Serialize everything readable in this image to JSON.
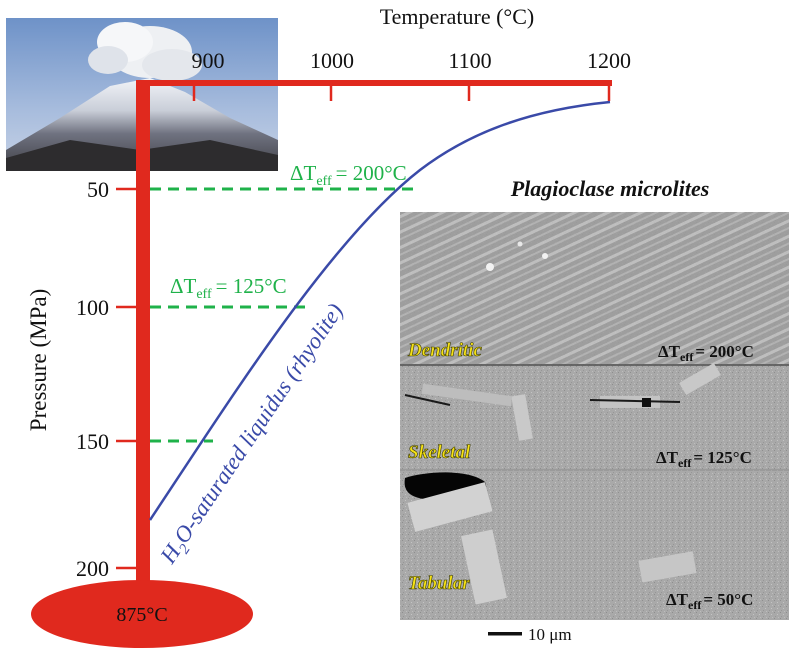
{
  "colors": {
    "axis_red": "#e0291e",
    "liquidus_blue": "#3a4aa8",
    "effective_green": "#1fb24a",
    "label_yellow": "#f6e216"
  },
  "top_axis": {
    "title": "Temperature (°C)",
    "ticks": [
      {
        "label": "900",
        "value": 900
      },
      {
        "label": "1000",
        "value": 1000
      },
      {
        "label": "1100",
        "value": 1100
      },
      {
        "label": "1200",
        "value": 1200
      }
    ]
  },
  "left_axis": {
    "title": "Pressure (MPa)",
    "ticks": [
      {
        "label": "50",
        "value": 50
      },
      {
        "label": "100",
        "value": 100
      },
      {
        "label": "150",
        "value": 150
      },
      {
        "label": "200",
        "value": 200
      }
    ]
  },
  "reservoir": {
    "label": "875°C"
  },
  "liquidus": {
    "label_pre": "H",
    "label_sub": "2",
    "label_post": "O-saturated liquidus (rhyolite)"
  },
  "undercooling_levels": [
    {
      "pressure": 50,
      "delta": "ΔT",
      "sub": "eff",
      "value": "= 200°C",
      "show_label": true
    },
    {
      "pressure": 100,
      "delta": "ΔT",
      "sub": "eff",
      "value": "= 125°C",
      "show_label": true
    },
    {
      "pressure": 150,
      "show_label": false
    }
  ],
  "microlites": {
    "title": "Plagioclase microlites",
    "panels": [
      {
        "texture": "Dendritic",
        "delta": "ΔT",
        "sub": "eff",
        "value": "= 200°C"
      },
      {
        "texture": "Skeletal",
        "delta": "ΔT",
        "sub": "eff",
        "value": "= 125°C"
      },
      {
        "texture": "Tabular",
        "delta": "ΔT",
        "sub": "eff",
        "value": "= 50°C"
      }
    ],
    "scale_bar": "10 μm"
  }
}
